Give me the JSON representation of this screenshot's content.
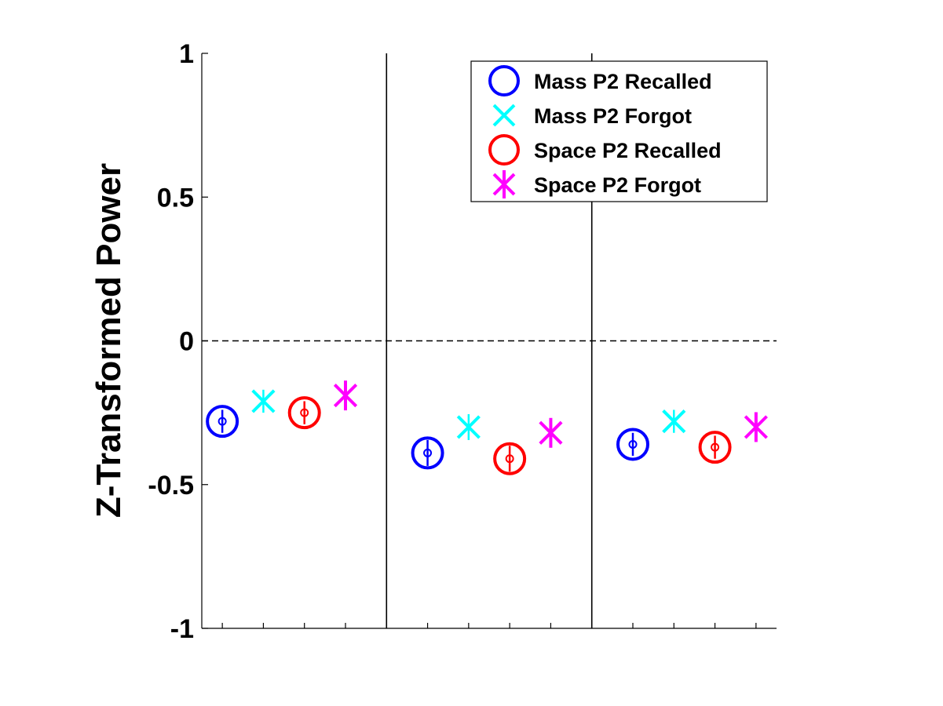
{
  "chart_data": {
    "type": "scatter",
    "title": "",
    "xlabel": "",
    "ylabel": "Z-Transformed Power",
    "ylim": [
      -1,
      1
    ],
    "yticks": [
      -1,
      -0.5,
      0,
      0.5,
      1
    ],
    "ytick_labels": [
      "-1",
      "-0.5",
      "0",
      "0.5",
      "1"
    ],
    "xlim": [
      0.5,
      14.5
    ],
    "xticks": [
      1,
      2,
      3,
      4,
      6,
      7,
      8,
      9,
      11,
      12,
      13,
      14
    ],
    "group_separators_x": [
      5,
      10
    ],
    "reference_line_y": 0,
    "grid": false,
    "legend_position": "top-right",
    "series": [
      {
        "name": "Mass P2 Recalled",
        "marker": "circle",
        "color": "#0000ff",
        "x": [
          1,
          6,
          11
        ],
        "y": [
          -0.28,
          -0.39,
          -0.36
        ],
        "err": [
          0.04,
          0.045,
          0.04
        ]
      },
      {
        "name": "Mass P2 Forgot",
        "marker": "x",
        "color": "#00ffff",
        "x": [
          2,
          7,
          12
        ],
        "y": [
          -0.21,
          -0.3,
          -0.28
        ],
        "err": [
          0.04,
          0.045,
          0.04
        ]
      },
      {
        "name": "Space P2 Recalled",
        "marker": "circle",
        "color": "#ff0000",
        "x": [
          3,
          8,
          13
        ],
        "y": [
          -0.25,
          -0.41,
          -0.37
        ],
        "err": [
          0.04,
          0.045,
          0.04
        ]
      },
      {
        "name": "Space P2 Forgot",
        "marker": "star",
        "color": "#ff00ff",
        "x": [
          4,
          9,
          14
        ],
        "y": [
          -0.19,
          -0.32,
          -0.3
        ],
        "err": [
          0.04,
          0.045,
          0.04
        ]
      }
    ]
  }
}
